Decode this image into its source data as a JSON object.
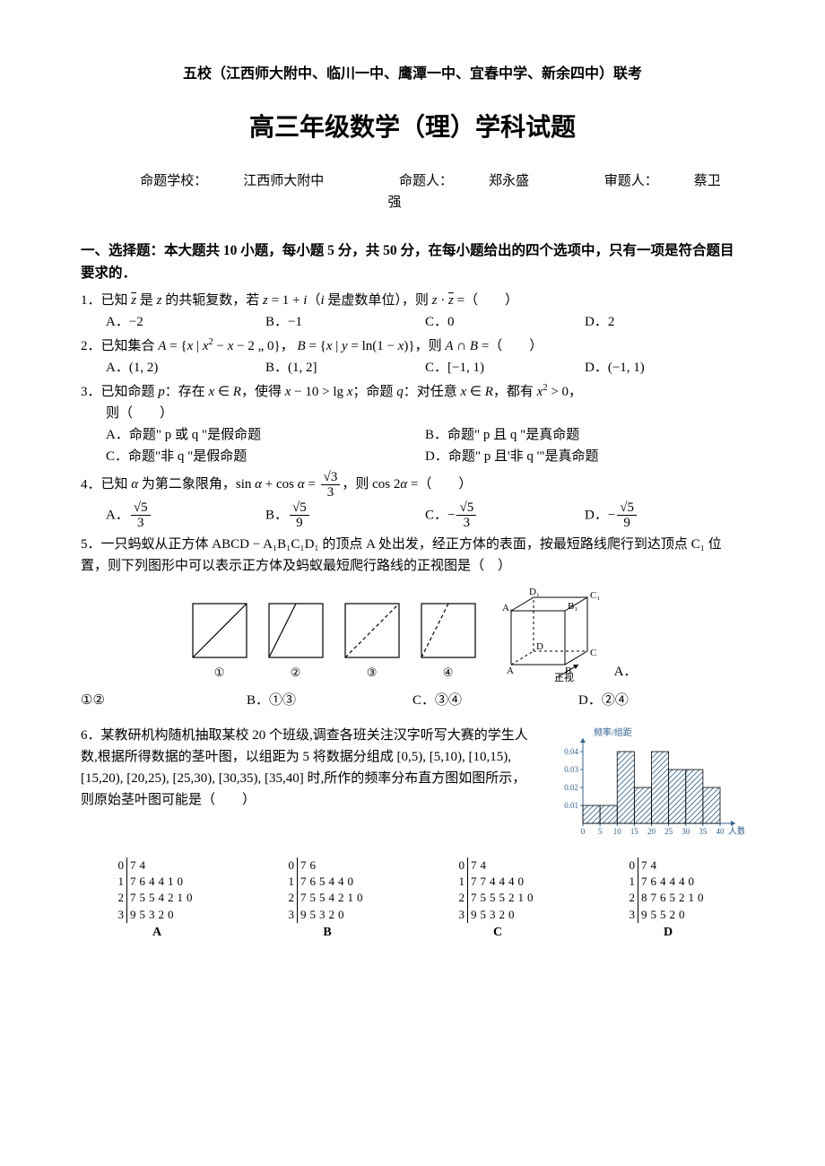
{
  "header": {
    "school_line": "五校（江西师大附中、临川一中、鹰潭一中、宜春中学、新余四中）联考",
    "main_title": "高三年级数学（理）学科试题",
    "author_school_label": "命题学校：",
    "author_school": "江西师大附中",
    "author_person_label": "命题人：",
    "author_person": "郑永盛",
    "reviewer_label": "审题人：",
    "reviewer": "蔡卫强"
  },
  "section1": {
    "title": "一、选择题：本大题共 10 小题，每小题 5 分，共 50 分，在每小题给出的四个选项中，只有一项是符合题目要求的．"
  },
  "q1": {
    "num": "1．",
    "stem_pre": "已知 ",
    "zbar": "z",
    "stem_mid1": " 是 ",
    "z": "z",
    "stem_mid2": " 的共轭复数，若 ",
    "eq": "z = 1 + i",
    "paren": "（ i 是虚数单位），则 ",
    "prod": "z · z̄ =",
    "blank": "（　　）",
    "A": "A．−2",
    "B": "B．−1",
    "C": "C．0",
    "D": "D．2"
  },
  "q2": {
    "num": "2．",
    "stem": "已知集合 A = { x | x² − x − 2 „ 0 }， B = { x | y = ln(1 − x) }，则 A ∩ B =（　　）",
    "A": "A．(1, 2)",
    "B": "B．(1, 2]",
    "C": "C．[−1, 1)",
    "D": "D．(−1, 1)"
  },
  "q3": {
    "num": "3．",
    "stem": "已知命题 p：存在 x ∈ R，使得 x − 10 > lg x；命题 q：对任意 x ∈ R，都有 x² > 0，",
    "stem2": "则（　　）",
    "A": "A．命题\" p 或 q \"是假命题",
    "B": "B．命题\" p 且 q \"是真命题",
    "C": "C．命题\"非 q \"是假命题",
    "D": "D．命题\" p 且'非 q '\"是真命题"
  },
  "q4": {
    "num": "4．",
    "stem_pre": "已知 α 为第二象限角，sin α + cos α = ",
    "frac_num": "√3",
    "frac_den": "3",
    "stem_mid": "，则 cos 2α =（　　）",
    "A_num": "√5",
    "A_den": "3",
    "B_num": "√5",
    "B_den": "9",
    "C_num": "√5",
    "C_den": "3",
    "D_num": "√5",
    "D_den": "9"
  },
  "q5": {
    "num": "5．",
    "stem": "一只蚂蚁从正方体 ABCD − A₁B₁C₁D₁ 的顶点 A 处出发，经正方体的表面，按最短路线爬行到达顶点 C₁ 位置，则下列图形中可以表示正方体及蚂蚁最短爬行路线的正视图是（　）",
    "fig_labels": [
      "①",
      "②",
      "③",
      "④"
    ],
    "cube_labels": {
      "A": "A",
      "B": "B",
      "C": "C",
      "D": "D",
      "A1": "A₁",
      "B1": "B₁",
      "C1": "C₁",
      "D1": "D₁",
      "view": "正视"
    },
    "A": "①②",
    "B": "B．①③",
    "C": "C．③④",
    "D": "D．②④",
    "A_label": "A．"
  },
  "q6": {
    "num": "6．",
    "stem": "某教研机构随机抽取某校 20 个班级,调查各班关注汉字听写大赛的学生人数,根据所得数据的茎叶图，以组距为 5 将数据分组成 [0,5), [5,10), [10,15), [15,20), [20,25), [25,30), [30,35), [35,40] 时,所作的频率分布直方图如图所示，则原始茎叶图可能是（　　）",
    "histogram": {
      "type": "histogram",
      "x_ticks": [
        0,
        5,
        10,
        15,
        20,
        25,
        30,
        35,
        40
      ],
      "y_ticks": [
        0.01,
        0.02,
        0.03,
        0.04
      ],
      "bar_heights": [
        0.01,
        0.01,
        0.04,
        0.02,
        0.04,
        0.03,
        0.03,
        0.02
      ],
      "y_label": "频率/组距",
      "x_label": "人数",
      "bar_fill_pattern": "diagonal-hatch",
      "axis_color": "#306090",
      "grid_color": "#e0e0e0",
      "background_color": "#ffffff"
    },
    "stem_leaf_options": {
      "A": {
        "label": "A",
        "stems": [
          0,
          1,
          2,
          3
        ],
        "leaves": [
          [
            7,
            4
          ],
          [
            7,
            6,
            4,
            4,
            1,
            0
          ],
          [
            7,
            5,
            5,
            4,
            2,
            1,
            0
          ],
          [
            9,
            5,
            3,
            2,
            0
          ]
        ]
      },
      "B": {
        "label": "B",
        "stems": [
          0,
          1,
          2,
          3
        ],
        "leaves": [
          [
            7,
            6
          ],
          [
            7,
            6,
            5,
            4,
            4,
            0
          ],
          [
            7,
            5,
            5,
            4,
            2,
            1,
            0
          ],
          [
            9,
            5,
            3,
            2,
            0
          ]
        ]
      },
      "C": {
        "label": "C",
        "stems": [
          0,
          1,
          2,
          3
        ],
        "leaves": [
          [
            7,
            4
          ],
          [
            7,
            7,
            4,
            4,
            4,
            0
          ],
          [
            7,
            5,
            5,
            5,
            2,
            1,
            0
          ],
          [
            9,
            5,
            3,
            2,
            0
          ]
        ]
      },
      "D": {
        "label": "D",
        "stems": [
          0,
          1,
          2,
          3
        ],
        "leaves": [
          [
            7,
            4
          ],
          [
            7,
            6,
            4,
            4,
            4,
            0
          ],
          [
            8,
            7,
            6,
            5,
            2,
            1,
            0
          ],
          [
            9,
            5,
            5,
            2,
            0
          ]
        ]
      }
    }
  }
}
